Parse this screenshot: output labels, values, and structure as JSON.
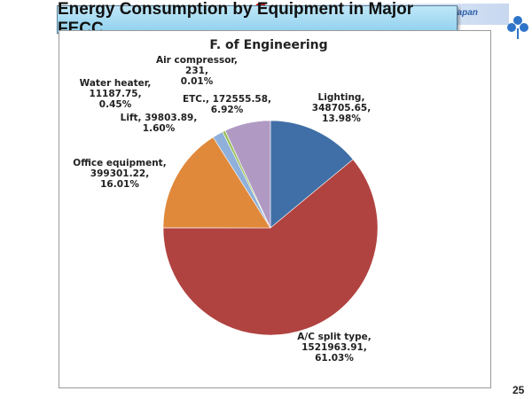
{
  "slide": {
    "title": "Energy Consumption by Equipment in Major FECC",
    "org_tag": "Japan",
    "page_number": "25"
  },
  "chart_data": {
    "type": "pie",
    "title": "F. of Engineering",
    "slices": [
      {
        "label": "Lighting",
        "value": 348705.65,
        "value_text": "348705.65,",
        "percent": 13.98,
        "percent_text": "13.98%",
        "color": "#3f6fa6"
      },
      {
        "label": "A/C split type",
        "value": 1521963.91,
        "value_text": "1521963.91,",
        "percent": 61.03,
        "percent_text": "61.03%",
        "color": "#b04340"
      },
      {
        "label": "Office equipment",
        "value": 399301.22,
        "value_text": "399301.22,",
        "percent": 16.01,
        "percent_text": "16.01%",
        "color": "#e0893b"
      },
      {
        "label": "Lift",
        "value": 39803.89,
        "value_text": "39803.89,",
        "percent": 1.6,
        "percent_text": "1.60%",
        "color": "#8fb0da"
      },
      {
        "label": "Water heater",
        "value": 11187.75,
        "value_text": "11187.75,",
        "percent": 0.45,
        "percent_text": "0.45%",
        "color": "#9bc05a"
      },
      {
        "label": "Air compressor",
        "value": 231,
        "value_text": "231,",
        "percent": 0.01,
        "percent_text": "0.01%",
        "color": "#6a4d96"
      },
      {
        "label": "ETC.",
        "value": 172555.58,
        "value_text": "172555.58,",
        "percent": 6.92,
        "percent_text": "6.92%",
        "color": "#b09ac4"
      }
    ]
  }
}
